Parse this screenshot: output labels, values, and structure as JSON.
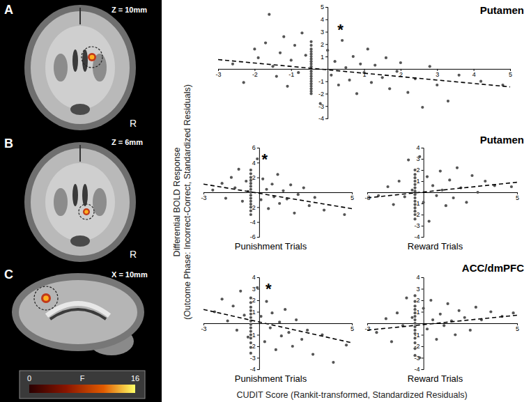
{
  "chart_data": [
    {
      "type": "scatter",
      "title": "Putamen",
      "xlim": [
        -3,
        5
      ],
      "ylim": [
        -4,
        5
      ],
      "xticks": [
        -3,
        -2,
        -1,
        1,
        2,
        3,
        4,
        5
      ],
      "yticks": [
        -4,
        -3,
        -2,
        -1,
        1,
        2,
        3,
        4,
        5
      ],
      "grid": false,
      "annotations": [
        {
          "text": "*",
          "x": 0.35,
          "y": 3.1
        }
      ],
      "series": [
        {
          "type": "scatter",
          "marker": "circle",
          "color": "#555555",
          "x": [
            -2.6,
            -2.3,
            -2.0,
            -1.9,
            -1.7,
            -1.6,
            -1.5,
            -1.4,
            -1.3,
            -1.2,
            -1.1,
            -1.0,
            -0.9,
            -0.8,
            -0.7,
            -0.6,
            -0.45,
            -0.45,
            -0.45,
            -0.45,
            -0.45,
            -0.45,
            -0.45,
            -0.45,
            -0.45,
            -0.45,
            -0.45,
            -0.45,
            -0.45,
            -0.45,
            -0.45,
            -0.45,
            -0.45,
            -0.45,
            -0.45,
            -0.45,
            -0.45,
            -0.2,
            0.0,
            0.1,
            0.2,
            0.3,
            0.4,
            0.5,
            0.6,
            0.7,
            0.8,
            0.9,
            1.0,
            1.1,
            1.2,
            1.3,
            1.5,
            1.6,
            1.7,
            1.9,
            2.0,
            2.2,
            2.4,
            2.6,
            2.8,
            3.0,
            3.3,
            3.6,
            4.2,
            4.8
          ],
          "values": [
            0.4,
            -1.1,
            1.6,
            0.9,
            2.1,
            4.4,
            0.2,
            -0.6,
            1.3,
            2.6,
            -1.4,
            0.7,
            1.9,
            -0.3,
            2.9,
            1.1,
            2.2,
            1.9,
            1.6,
            1.4,
            1.2,
            1.0,
            0.8,
            0.6,
            0.4,
            0.2,
            0.0,
            -0.2,
            -0.4,
            -0.6,
            -0.8,
            -1.0,
            -1.2,
            -1.4,
            -1.6,
            -1.8,
            -2.0,
            -2.8,
            1.5,
            -0.5,
            0.6,
            -1.3,
            2.3,
            0.1,
            -0.9,
            1.0,
            -2.0,
            0.4,
            -0.3,
            1.6,
            -1.1,
            0.3,
            -0.7,
            0.9,
            -1.6,
            -0.2,
            0.5,
            -1.9,
            -0.8,
            -3.1,
            0.2,
            -1.3,
            -2.6,
            -0.5,
            -1.0,
            -1.3
          ]
        },
        {
          "type": "line",
          "line_style": "dashed",
          "color": "#000000",
          "x": [
            -3,
            5
          ],
          "values": [
            0.75,
            -1.45
          ]
        }
      ]
    },
    {
      "type": "scatter",
      "title": "Putamen",
      "xlabel": "Punishment Trials",
      "xlim": [
        -3,
        5
      ],
      "ylim": [
        -6,
        6
      ],
      "xticks": [
        -3,
        5
      ],
      "yticks": [
        -6,
        -4,
        -2,
        2,
        4,
        6
      ],
      "grid": false,
      "annotations": [
        {
          "text": "*",
          "x": 0.3,
          "y": 4.3
        }
      ],
      "series": [
        {
          "type": "scatter",
          "marker": "circle",
          "color": "#555555",
          "x": [
            -2.5,
            -2.0,
            -1.8,
            -1.5,
            -1.3,
            -1.1,
            -0.9,
            -0.7,
            -0.6,
            -0.45,
            -0.45,
            -0.45,
            -0.45,
            -0.45,
            -0.45,
            -0.45,
            -0.45,
            -0.45,
            -0.45,
            -0.45,
            -0.45,
            -0.45,
            -0.45,
            -0.45,
            -0.1,
            0.1,
            0.2,
            0.4,
            0.5,
            0.7,
            0.8,
            1.0,
            1.1,
            1.3,
            1.5,
            1.7,
            1.9,
            2.1,
            2.4,
            2.7,
            3.0,
            3.5,
            4.6
          ],
          "values": [
            0.3,
            1.2,
            -0.8,
            2.0,
            0.6,
            3.1,
            -1.2,
            1.5,
            0.1,
            3.0,
            2.5,
            2.0,
            1.6,
            1.2,
            0.8,
            0.4,
            0.0,
            -0.4,
            -0.8,
            -1.2,
            -1.6,
            -2.0,
            -2.5,
            -3.0,
            4.5,
            -1.0,
            1.8,
            0.4,
            -2.2,
            1.1,
            -0.6,
            2.4,
            -1.5,
            0.2,
            -0.9,
            1.0,
            -2.8,
            -0.3,
            0.6,
            -1.8,
            -0.7,
            -2.4,
            -3.0
          ]
        },
        {
          "type": "line",
          "line_style": "dashed",
          "color": "#000000",
          "x": [
            -3,
            5
          ],
          "values": [
            1.1,
            -2.2
          ]
        }
      ]
    },
    {
      "type": "scatter",
      "xlabel": "Reward Trials",
      "xlim": [
        -3,
        5
      ],
      "ylim": [
        -4,
        4
      ],
      "xticks": [
        -3,
        5
      ],
      "yticks": [
        -4,
        -3,
        -2,
        -1,
        1,
        2,
        3,
        4
      ],
      "grid": false,
      "series": [
        {
          "type": "scatter",
          "marker": "circle",
          "color": "#555555",
          "x": [
            -2.4,
            -1.9,
            -1.6,
            -1.3,
            -1.0,
            -0.8,
            -0.6,
            -0.45,
            -0.45,
            -0.45,
            -0.45,
            -0.45,
            -0.45,
            -0.45,
            -0.45,
            -0.45,
            -0.45,
            -0.45,
            -0.45,
            -0.45,
            -0.45,
            -0.45,
            -0.2,
            0.0,
            0.2,
            0.3,
            0.5,
            0.7,
            0.9,
            1.0,
            1.2,
            1.4,
            1.6,
            1.8,
            2.0,
            2.3,
            2.6,
            2.9,
            3.3,
            3.8,
            4.7
          ],
          "values": [
            -0.3,
            0.5,
            -1.1,
            1.0,
            -0.4,
            2.9,
            0.2,
            2.0,
            1.6,
            1.3,
            1.0,
            0.7,
            0.4,
            0.1,
            -0.2,
            -0.5,
            -0.8,
            -1.1,
            -1.4,
            -1.7,
            -2.0,
            -2.4,
            3.2,
            -0.9,
            1.4,
            -2.6,
            0.6,
            -0.3,
            1.9,
            0.2,
            -1.2,
            1.1,
            -0.5,
            2.2,
            0.4,
            -0.9,
            1.5,
            0.0,
            1.0,
            0.6,
            0.5
          ]
        },
        {
          "type": "line",
          "line_style": "dashed",
          "color": "#000000",
          "x": [
            -3,
            5
          ],
          "values": [
            -0.5,
            0.9
          ]
        }
      ]
    },
    {
      "type": "scatter",
      "title": "ACC/dmPFC",
      "xlabel": "Punishment Trials",
      "xlim": [
        -3,
        5
      ],
      "ylim": [
        -4,
        4
      ],
      "xticks": [
        -3,
        5
      ],
      "yticks": [
        -4,
        -3,
        -2,
        -1,
        1,
        2,
        3,
        4
      ],
      "grid": false,
      "annotations": [
        {
          "text": "*",
          "x": 0.5,
          "y": 2.9
        }
      ],
      "series": [
        {
          "type": "scatter",
          "marker": "circle",
          "color": "#555555",
          "x": [
            -2.4,
            -2.0,
            -1.7,
            -1.4,
            -1.2,
            -1.0,
            -0.8,
            -0.6,
            -0.45,
            -0.45,
            -0.45,
            -0.45,
            -0.45,
            -0.45,
            -0.45,
            -0.45,
            -0.45,
            -0.45,
            -0.45,
            -0.45,
            -0.45,
            -0.45,
            -0.45,
            -0.1,
            0.1,
            0.3,
            0.4,
            0.6,
            0.7,
            0.9,
            1.1,
            1.2,
            1.4,
            1.6,
            1.8,
            2.0,
            2.3,
            2.6,
            2.9,
            3.4,
            4.0,
            4.7
          ],
          "values": [
            1.0,
            2.1,
            0.2,
            1.5,
            -0.6,
            2.8,
            0.7,
            -1.2,
            2.2,
            1.8,
            1.4,
            1.1,
            0.8,
            0.5,
            0.2,
            -0.1,
            -0.4,
            -0.7,
            -1.0,
            -1.3,
            -1.7,
            -2.1,
            -2.6,
            3.1,
            0.6,
            -1.6,
            1.9,
            -0.4,
            0.9,
            -2.3,
            0.1,
            -1.1,
            1.2,
            -0.8,
            -2.0,
            0.3,
            -1.4,
            -0.6,
            -2.7,
            -1.0,
            -3.4,
            -1.9
          ]
        },
        {
          "type": "line",
          "line_style": "dashed",
          "color": "#000000",
          "x": [
            -3,
            5
          ],
          "values": [
            1.2,
            -1.7
          ]
        }
      ]
    },
    {
      "type": "scatter",
      "xlabel": "Reward Trials",
      "xlim": [
        -3,
        5
      ],
      "ylim": [
        -4,
        4
      ],
      "xticks": [
        -3,
        5
      ],
      "yticks": [
        -4,
        -3,
        -2,
        -1,
        1,
        2,
        3,
        4
      ],
      "grid": false,
      "series": [
        {
          "type": "scatter",
          "marker": "circle",
          "color": "#555555",
          "x": [
            -2.5,
            -2.0,
            -1.7,
            -1.4,
            -1.1,
            -0.9,
            -0.6,
            -0.45,
            -0.45,
            -0.45,
            -0.45,
            -0.45,
            -0.45,
            -0.45,
            -0.45,
            -0.45,
            -0.45,
            -0.45,
            -0.45,
            -0.45,
            -0.45,
            -0.45,
            -0.2,
            0.0,
            0.2,
            0.4,
            0.5,
            0.7,
            0.9,
            1.1,
            1.3,
            1.5,
            1.7,
            1.9,
            2.2,
            2.5,
            2.8,
            3.1,
            3.6,
            4.2,
            4.8
          ],
          "values": [
            -0.8,
            0.4,
            -1.6,
            0.9,
            -0.2,
            2.2,
            0.5,
            2.4,
            1.9,
            1.5,
            1.2,
            0.9,
            0.6,
            0.3,
            0.0,
            -0.3,
            -0.6,
            -0.9,
            -1.3,
            -1.7,
            -2.2,
            -2.8,
            -3.0,
            1.3,
            -0.5,
            2.0,
            0.3,
            -1.4,
            0.8,
            -0.2,
            1.7,
            0.2,
            -1.0,
            1.1,
            0.5,
            -0.6,
            1.4,
            0.3,
            1.0,
            0.6,
            0.9
          ]
        },
        {
          "type": "line",
          "line_style": "dashed",
          "color": "#000000",
          "x": [
            -3,
            5
          ],
          "values": [
            -0.6,
            0.7
          ]
        }
      ]
    }
  ],
  "shared_labels": {
    "y": [
      "Differential BOLD Response",
      "(Outcome Phase: Incorrect-Correct, Standardized Residuals)"
    ],
    "x": "CUDIT Score (Rankit-transformed, Standardized Residuals)"
  },
  "brain_panels": [
    {
      "label": "A",
      "slice": "Z = 10mm",
      "side": "R"
    },
    {
      "label": "B",
      "slice": "Z = 6mm",
      "side": "R"
    },
    {
      "label": "C",
      "slice": "X = 10mm"
    }
  ],
  "colorbar": {
    "label": "F",
    "range": [
      0,
      16
    ],
    "ticks": [
      0,
      16
    ]
  }
}
